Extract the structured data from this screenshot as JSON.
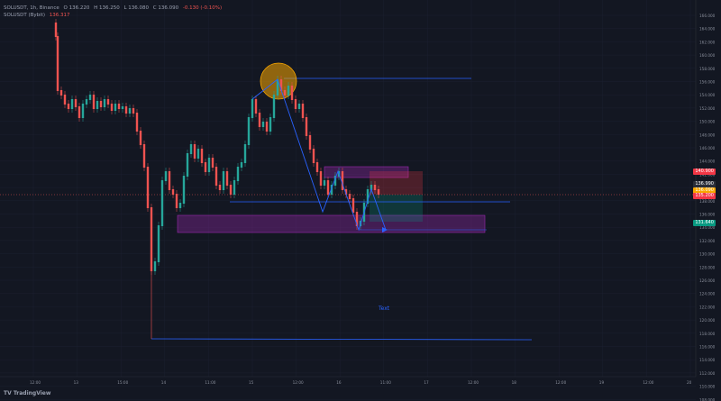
{
  "legend": {
    "symbol": "SOLUSDT, 1h, Binance",
    "open": "O 136.220",
    "high": "H 136.250",
    "low": "L 136.080",
    "close": "C 136.090",
    "change": "-0.130 (-0.10%)",
    "indicator": "SOLUSDT (Bybit)",
    "indicator_value": "136.317"
  },
  "price_axis": [
    "166.000",
    "164.000",
    "162.000",
    "160.000",
    "158.000",
    "156.000",
    "154.000",
    "152.000",
    "150.000",
    "148.000",
    "146.000",
    "144.000",
    "142.000",
    "140.000",
    "138.000",
    "136.000",
    "134.000",
    "132.000",
    "130.000",
    "128.000",
    "126.000",
    "124.000",
    "122.000",
    "120.000",
    "118.000",
    "116.000",
    "114.000",
    "112.000",
    "110.000",
    "108.000",
    "106.000"
  ],
  "price_tags": [
    {
      "text": "140.900",
      "color": "#f23645"
    },
    {
      "text": "136.990",
      "color": "#2a2e39"
    },
    {
      "text": "136.090",
      "color": "#f7a600"
    },
    {
      "text": "135.200",
      "color": "#f23645"
    },
    {
      "text": "131.640",
      "color": "#089981"
    }
  ],
  "time_axis": [
    "12:00",
    "13",
    "15:00",
    "14",
    "11:00",
    "15",
    "12:00",
    "16",
    "11:00",
    "17",
    "12:00",
    "18",
    "12:00",
    "19",
    "12:00",
    "20"
  ],
  "annotation_text": "Text",
  "brand": "TradingView",
  "colors": {
    "background": "#131722",
    "drawing": "#2962ff",
    "zone": "#9c27b0",
    "circle": "#f7a600",
    "up": "#26a69a",
    "down": "#ef5350"
  }
}
